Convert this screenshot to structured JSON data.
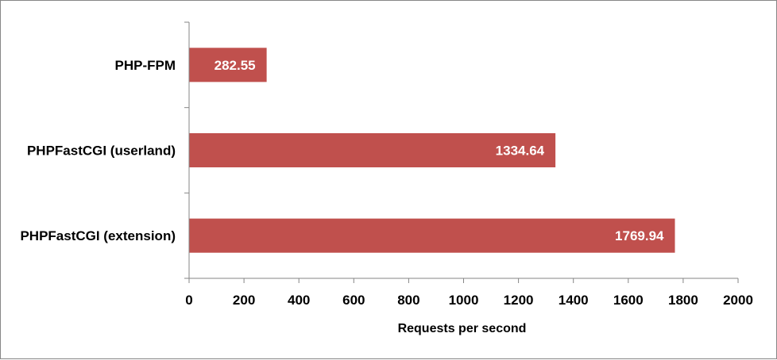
{
  "chart_data": {
    "type": "bar",
    "orientation": "horizontal",
    "categories": [
      "PHP-FPM",
      "PHPFastCGI (userland)",
      "PHPFastCGI (extension)"
    ],
    "values": [
      282.55,
      1334.64,
      1769.94
    ],
    "value_labels": [
      "282.55",
      "1334.64",
      "1769.94"
    ],
    "title": "",
    "xlabel": "Requests per second",
    "ylabel": "",
    "xlim": [
      0,
      2000
    ],
    "x_ticks": [
      "0",
      "200",
      "400",
      "600",
      "800",
      "1000",
      "1200",
      "1400",
      "1600",
      "1800",
      "2000"
    ],
    "grid": false,
    "legend": "none",
    "bar_color": "#C0504D",
    "data_label_color": "#FFFFFF"
  }
}
